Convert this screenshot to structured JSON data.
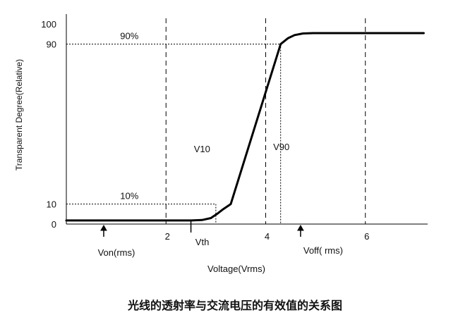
{
  "chart_data": {
    "type": "line",
    "title": "",
    "caption": "光线的透射率与交流电压的有效值的关系图",
    "xlabel": "Voltage(Vrms)",
    "ylabel": "Transparent Degree(Relative)",
    "xlim": [
      0,
      7.25
    ],
    "ylim": [
      0,
      105
    ],
    "x_ticks": [
      {
        "value": 2,
        "label": "2"
      },
      {
        "value": 4,
        "label": "4"
      },
      {
        "value": 6,
        "label": "6"
      }
    ],
    "y_ticks": [
      {
        "value": 0,
        "label": "0"
      },
      {
        "value": 10,
        "label": "10"
      },
      {
        "value": 90,
        "label": "90"
      },
      {
        "value": 100,
        "label": "100"
      }
    ],
    "series": [
      {
        "name": "",
        "color": "#000000",
        "x": [
          0.0,
          2.5,
          2.72,
          2.9,
          3.02,
          3.15,
          3.3,
          4.3,
          4.45,
          4.58,
          4.75,
          4.95,
          7.17
        ],
        "y": [
          1.8,
          1.8,
          2.0,
          3.0,
          5.0,
          7.5,
          10.0,
          90.0,
          93.0,
          94.5,
          95.3,
          95.5,
          95.5
        ]
      }
    ],
    "vertical_dashed_lines": [
      2,
      4,
      6
    ],
    "threshold_lines": [
      {
        "label": "10%",
        "y": 10,
        "x_end": 3.0
      },
      {
        "label": "90%",
        "y": 90,
        "x_end": 4.3
      }
    ],
    "annotations": {
      "vth": {
        "label": "Vth",
        "x": 2.5
      },
      "v10": {
        "label": "V10",
        "x": 3.0
      },
      "v90": {
        "label": "V90",
        "x": 4.3
      },
      "von": {
        "label": "Von(rms)",
        "x": 0.75
      },
      "voff": {
        "label": "Voff(  rms)",
        "x": 4.7
      }
    }
  }
}
